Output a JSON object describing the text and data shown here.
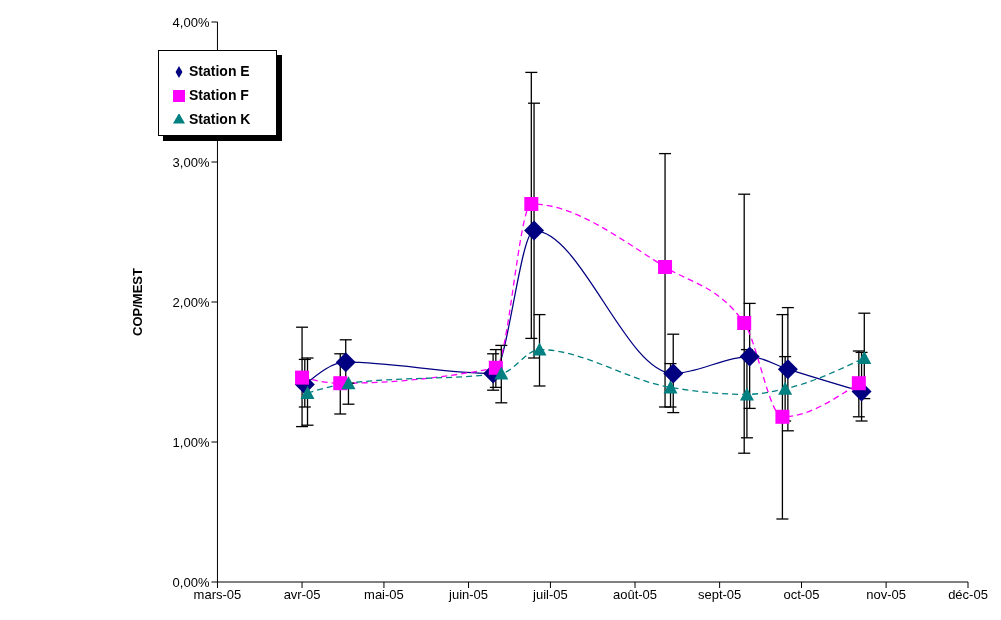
{
  "chart_data": {
    "type": "line",
    "ylabel": "COP/MEST",
    "xlim": [
      "2005-03-01",
      "2005-12-01"
    ],
    "xticks": [
      {
        "value": "2005-03-01",
        "label": "mars-05"
      },
      {
        "value": "2005-04-01",
        "label": "avr-05"
      },
      {
        "value": "2005-05-01",
        "label": "mai-05"
      },
      {
        "value": "2005-06-01",
        "label": "juin-05"
      },
      {
        "value": "2005-07-01",
        "label": "juil-05"
      },
      {
        "value": "2005-08-01",
        "label": "août-05"
      },
      {
        "value": "2005-09-01",
        "label": "sept-05"
      },
      {
        "value": "2005-10-01",
        "label": "oct-05"
      },
      {
        "value": "2005-11-01",
        "label": "nov-05"
      },
      {
        "value": "2005-12-01",
        "label": "déc-05"
      }
    ],
    "ylim": [
      0,
      4
    ],
    "yticks": [
      {
        "value": 0,
        "label": "0,00%"
      },
      {
        "value": 1,
        "label": "1,00%"
      },
      {
        "value": 2,
        "label": "2,00%"
      },
      {
        "value": 3,
        "label": "3,00%"
      },
      {
        "value": 4,
        "label": "4,00%"
      }
    ],
    "grid": false,
    "legend": "top left",
    "series": [
      {
        "name": "Station E",
        "color": "#000080",
        "marker": "diamond",
        "line_style": "solid",
        "x": [
          "2005-04-02",
          "2005-04-17",
          "2005-06-10",
          "2005-06-25",
          "2005-08-15",
          "2005-09-12",
          "2005-09-26",
          "2005-10-23"
        ],
        "values": [
          1.41,
          1.57,
          1.49,
          2.51,
          1.49,
          1.61,
          1.52,
          1.36
        ],
        "errors": [
          [
            1.25,
            1.59
          ],
          [
            1.41,
            1.73
          ],
          [
            1.37,
            1.63
          ],
          [
            1.6,
            3.42
          ],
          [
            1.21,
            1.77
          ],
          [
            1.24,
            1.99
          ],
          [
            1.08,
            1.96
          ],
          [
            1.15,
            1.64
          ]
        ]
      },
      {
        "name": "Station F",
        "color": "#ff00ff",
        "marker": "square",
        "line_style": "dashed",
        "x": [
          "2005-04-01",
          "2005-04-15",
          "2005-06-11",
          "2005-06-24",
          "2005-08-12",
          "2005-09-10",
          "2005-09-24",
          "2005-10-22"
        ],
        "values": [
          1.46,
          1.42,
          1.53,
          2.7,
          2.25,
          1.85,
          1.18,
          1.42
        ],
        "errors": [
          [
            1.11,
            1.82
          ],
          [
            1.2,
            1.63
          ],
          [
            1.39,
            1.66
          ],
          [
            1.74,
            3.64
          ],
          [
            1.25,
            3.06
          ],
          [
            0.92,
            2.77
          ],
          [
            0.45,
            1.91
          ],
          [
            1.18,
            1.65
          ]
        ]
      },
      {
        "name": "Station K",
        "color": "#008080",
        "marker": "triangle",
        "line_style": "dashed",
        "x": [
          "2005-04-03",
          "2005-04-18",
          "2005-06-13",
          "2005-06-27",
          "2005-08-14",
          "2005-09-11",
          "2005-09-25",
          "2005-10-24"
        ],
        "values": [
          1.35,
          1.42,
          1.49,
          1.66,
          1.39,
          1.34,
          1.38,
          1.6
        ],
        "errors": [
          [
            1.12,
            1.6
          ],
          [
            1.27,
            1.42
          ],
          [
            1.28,
            1.69
          ],
          [
            1.4,
            1.91
          ],
          [
            1.25,
            1.56
          ],
          [
            1.03,
            1.66
          ],
          [
            1.15,
            1.61
          ],
          [
            1.31,
            1.92
          ]
        ]
      }
    ]
  }
}
